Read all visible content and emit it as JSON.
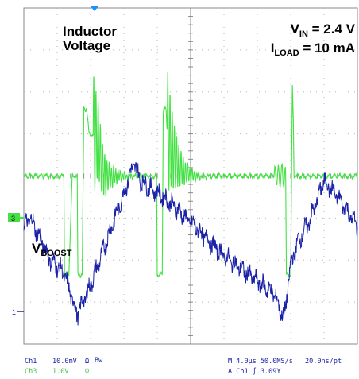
{
  "chart_data": {
    "type": "line",
    "title": "",
    "xlabel": "",
    "ylabel": "",
    "grid": true,
    "x_range": [
      0,
      10
    ],
    "y_range": [
      -4,
      4
    ],
    "annotations": {
      "inductor_label": [
        "Inductor",
        "Voltage"
      ],
      "vin": {
        "base": "V",
        "sub": "IN",
        "rest": " = 2.4 V"
      },
      "iload": {
        "base": "I",
        "sub": "LOAD",
        "rest": " = 10 mA"
      },
      "vboost": {
        "base": "V",
        "sub": "BOOST"
      }
    },
    "markers": {
      "ch3": "3",
      "ch1": "1"
    },
    "colors": {
      "ch1": "#1a22a8",
      "ch3": "#44e144",
      "grid": "#888888"
    },
    "status_bar": {
      "ch1_name": "Ch1",
      "ch1_scale": "10.0mV",
      "ch1_coupling": "Ω",
      "ch1_bw": "Bw",
      "ch3_name": "Ch3",
      "ch3_scale": "1.0V",
      "ch3_coupling": "Ω",
      "timebase": "M 4.0µs 50.0MS/s",
      "resolution": "20.0ns/pt",
      "trigger": "A  Ch1  ∫  3.09Y"
    },
    "series": [
      {
        "channel": "Ch3",
        "x": [
          0,
          1.2,
          1.22,
          1.35,
          1.45,
          1.6,
          1.62,
          1.75,
          1.8,
          1.88,
          1.95,
          2.05,
          2.2,
          2.4,
          2.7,
          3.2,
          3.7,
          3.98,
          4.0,
          4.08,
          4.15,
          4.18,
          4.2,
          4.23,
          4.26,
          4.29,
          4.35,
          4.45,
          4.6,
          4.8,
          5.1,
          5.5,
          6.0,
          7.0,
          7.5,
          7.85,
          7.87,
          8.0,
          8.05,
          8.08,
          8.1,
          9.0,
          10.0
        ],
        "y": [
          0,
          0,
          -2.35,
          -2.35,
          0,
          0,
          -2.35,
          -2.35,
          1.6,
          1.6,
          1.05,
          0.95,
          0.95,
          0,
          0,
          0,
          0,
          0,
          -2.35,
          -2.35,
          -2.35,
          1.6,
          1.65,
          1.65,
          1.6,
          1.1,
          1.0,
          0.6,
          0.3,
          0.1,
          0,
          0,
          0,
          0,
          0,
          0,
          -2.35,
          -2.35,
          2.1,
          1.3,
          0,
          0,
          0
        ]
      },
      {
        "channel": "Ch1",
        "x": [
          0,
          0.2,
          0.5,
          0.8,
          1.2,
          1.6,
          2.0,
          2.5,
          3.0,
          3.3,
          3.5,
          3.8,
          4.2,
          4.6,
          5.0,
          5.5,
          6.0,
          6.5,
          7.0,
          7.5,
          7.8,
          8.0,
          8.2,
          8.6,
          9.0,
          9.5,
          10.0
        ],
        "y": [
          -1.2,
          -1.0,
          -1.5,
          -2.0,
          -2.3,
          -3.3,
          -2.6,
          -1.5,
          -0.4,
          0.3,
          -0.1,
          -0.3,
          -0.5,
          -0.8,
          -1.1,
          -1.5,
          -1.9,
          -2.2,
          -2.5,
          -2.8,
          -3.4,
          -2.1,
          -1.6,
          -1.0,
          -0.1,
          -0.6,
          -1.2
        ]
      }
    ]
  }
}
